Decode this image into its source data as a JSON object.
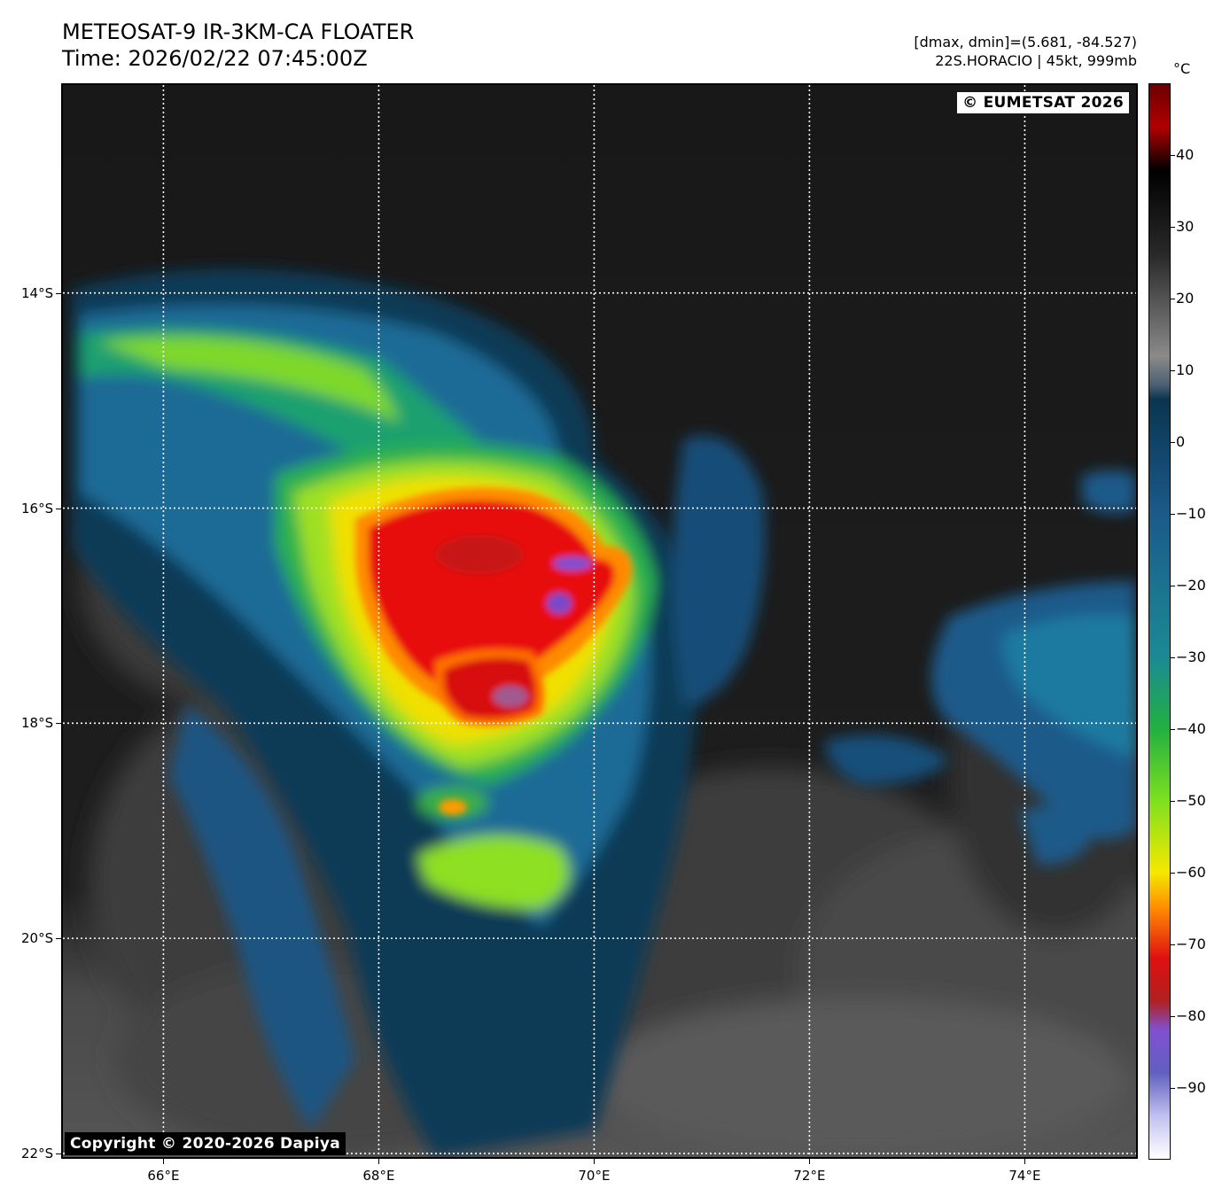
{
  "header": {
    "title": "METEOSAT-9 IR-3KM-CA FLOATER",
    "time": "Time: 2026/02/22 07:45:00Z",
    "dminmax": "[dmax, dmin]=(5.681, -84.527)",
    "storm": "22S.HORACIO | 45kt, 999mb"
  },
  "map": {
    "watermark": "© EUMETSAT 2026",
    "copyright": "Copyright © 2020-2026 Dapiya",
    "lon_labels": [
      "66°E",
      "68°E",
      "70°E",
      "72°E",
      "74°E"
    ],
    "lat_labels": [
      "14°S",
      "16°S",
      "18°S",
      "20°S",
      "22°S"
    ],
    "lon_values": [
      66,
      68,
      70,
      72,
      74
    ],
    "lat_values": [
      -14,
      -16,
      -18,
      -20,
      -22
    ],
    "lon_range": [
      65.05,
      75.05
    ],
    "lat_range": [
      -12.05,
      -22.05
    ]
  },
  "colorbar": {
    "unit": "°C",
    "ticks": [
      "40",
      "30",
      "20",
      "10",
      "0",
      "−10",
      "−20",
      "−30",
      "−40",
      "−50",
      "−60",
      "−70",
      "−80",
      "−90"
    ],
    "tick_values": [
      40,
      30,
      20,
      10,
      0,
      -10,
      -20,
      -30,
      -40,
      -50,
      -60,
      -70,
      -80,
      -90
    ],
    "range": [
      50,
      -100
    ],
    "colors": {
      "warm": "#6b0000",
      "hot": "#b00000",
      "black": "#000000",
      "gray": "#8a8a8a",
      "navy": "#0a3550",
      "blue": "#1b5a8a",
      "teal": "#1b8a94",
      "green": "#22b040",
      "lime": "#7ee020",
      "yellow": "#f5e800",
      "orange": "#ff8c00",
      "red": "#e01010",
      "purple": "#8050d0",
      "white": "#ffffff"
    }
  }
}
